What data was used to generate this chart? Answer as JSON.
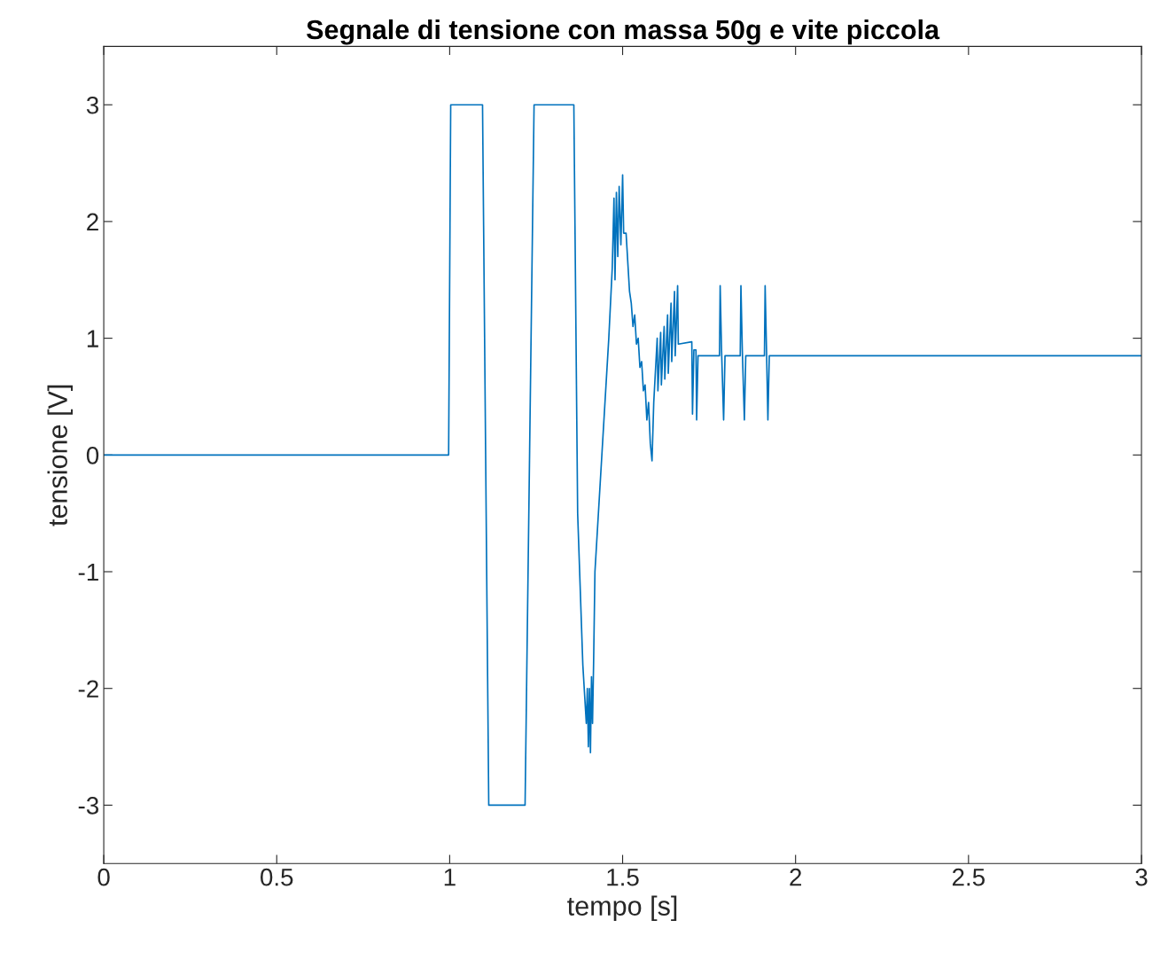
{
  "chart_data": {
    "type": "line",
    "title": "Segnale di tensione con massa 50g e vite piccola",
    "xlabel": "tempo [s]",
    "ylabel": "tensione [V]",
    "xlim": [
      0,
      3
    ],
    "ylim": [
      -3.5,
      3.5
    ],
    "xticks": [
      0,
      0.5,
      1,
      1.5,
      2,
      2.5,
      3
    ],
    "yticks": [
      -3,
      -2,
      -1,
      0,
      1,
      2,
      3
    ],
    "grid": false,
    "legend": false,
    "marker": "none",
    "line_style": "solid",
    "series": [
      {
        "color": "#0072bd",
        "x": [
          0,
          0.997,
          1.003,
          1.095,
          1.113,
          1.218,
          1.244,
          1.359,
          1.37,
          1.385,
          1.395,
          1.398,
          1.401,
          1.404,
          1.407,
          1.41,
          1.413,
          1.416,
          1.42,
          1.44,
          1.46,
          1.47,
          1.475,
          1.478,
          1.482,
          1.486,
          1.49,
          1.495,
          1.5,
          1.503,
          1.51,
          1.52,
          1.525,
          1.53,
          1.535,
          1.54,
          1.545,
          1.55,
          1.555,
          1.56,
          1.565,
          1.57,
          1.575,
          1.58,
          1.585,
          1.59,
          1.6,
          1.602,
          1.61,
          1.612,
          1.62,
          1.622,
          1.63,
          1.632,
          1.64,
          1.642,
          1.65,
          1.652,
          1.659,
          1.661,
          1.7,
          1.702,
          1.706,
          1.712,
          1.714,
          1.718,
          1.78,
          1.782,
          1.786,
          1.792,
          1.796,
          1.84,
          1.842,
          1.846,
          1.852,
          1.856,
          1.91,
          1.912,
          1.916,
          1.92,
          1.924,
          3
        ],
        "values": [
          0,
          0,
          3,
          3,
          -3,
          -3,
          3,
          3,
          -0.5,
          -1.8,
          -2.3,
          -2.0,
          -2.5,
          -2.0,
          -2.55,
          -1.9,
          -2.3,
          -1.8,
          -1.0,
          0,
          1.0,
          1.6,
          2.2,
          1.5,
          2.25,
          1.7,
          2.3,
          1.8,
          2.4,
          1.9,
          1.9,
          1.4,
          1.3,
          1.1,
          1.2,
          0.95,
          1.0,
          0.75,
          0.8,
          0.55,
          0.6,
          0.3,
          0.45,
          0.1,
          -0.05,
          0.45,
          1.0,
          0.55,
          1.05,
          0.6,
          1.1,
          0.65,
          1.2,
          0.7,
          1.3,
          0.8,
          1.4,
          0.85,
          1.45,
          0.95,
          0.97,
          0.35,
          0.9,
          0.9,
          0.3,
          0.85,
          0.85,
          1.45,
          0.9,
          0.3,
          0.85,
          0.85,
          1.45,
          0.9,
          0.3,
          0.85,
          0.85,
          1.45,
          0.9,
          0.3,
          0.85,
          0.85
        ]
      }
    ]
  }
}
